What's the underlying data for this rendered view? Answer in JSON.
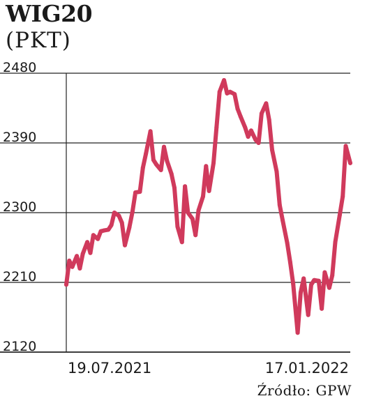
{
  "chart_data": {
    "type": "line",
    "title": "WIG20",
    "subtitle": "(PKT)",
    "xlabel": "",
    "ylabel": "",
    "ylim": [
      2120,
      2480
    ],
    "y_ticks": [
      "2480",
      "2390",
      "2300",
      "2210",
      "2120"
    ],
    "x_tick_labels": [
      "19.07.2021",
      "17.01.2022"
    ],
    "grid": "horizontal",
    "line_color": "#d03a5c",
    "x_range": [
      "2021-07-19",
      "2022-01-24"
    ],
    "series": [
      {
        "points": [
          [
            "2021-07-19",
            2207
          ],
          [
            "2021-07-21",
            2238
          ],
          [
            "2021-07-23",
            2230
          ],
          [
            "2021-07-26",
            2244
          ],
          [
            "2021-07-28",
            2228
          ],
          [
            "2021-07-30",
            2247
          ],
          [
            "2021-08-02",
            2262
          ],
          [
            "2021-08-04",
            2248
          ],
          [
            "2021-08-06",
            2271
          ],
          [
            "2021-08-09",
            2266
          ],
          [
            "2021-08-11",
            2276
          ],
          [
            "2021-08-13",
            2277
          ],
          [
            "2021-08-16",
            2278
          ],
          [
            "2021-08-18",
            2284
          ],
          [
            "2021-08-20",
            2300
          ],
          [
            "2021-08-23",
            2296
          ],
          [
            "2021-08-25",
            2287
          ],
          [
            "2021-08-27",
            2258
          ],
          [
            "2021-08-30",
            2281
          ],
          [
            "2021-09-01",
            2301
          ],
          [
            "2021-09-03",
            2326
          ],
          [
            "2021-09-06",
            2327
          ],
          [
            "2021-09-08",
            2358
          ],
          [
            "2021-09-10",
            2376
          ],
          [
            "2021-09-13",
            2405
          ],
          [
            "2021-09-15",
            2368
          ],
          [
            "2021-09-17",
            2362
          ],
          [
            "2021-09-20",
            2355
          ],
          [
            "2021-09-22",
            2385
          ],
          [
            "2021-09-24",
            2367
          ],
          [
            "2021-09-27",
            2350
          ],
          [
            "2021-09-29",
            2332
          ],
          [
            "2021-10-01",
            2282
          ],
          [
            "2021-10-04",
            2262
          ],
          [
            "2021-10-06",
            2334
          ],
          [
            "2021-10-08",
            2300
          ],
          [
            "2021-10-11",
            2292
          ],
          [
            "2021-10-13",
            2271
          ],
          [
            "2021-10-15",
            2303
          ],
          [
            "2021-10-18",
            2321
          ],
          [
            "2021-10-20",
            2360
          ],
          [
            "2021-10-22",
            2328
          ],
          [
            "2021-10-25",
            2364
          ],
          [
            "2021-10-27",
            2410
          ],
          [
            "2021-10-29",
            2456
          ],
          [
            "2021-11-01",
            2471
          ],
          [
            "2021-11-03",
            2454
          ],
          [
            "2021-11-05",
            2456
          ],
          [
            "2021-11-08",
            2453
          ],
          [
            "2021-11-10",
            2434
          ],
          [
            "2021-11-12",
            2424
          ],
          [
            "2021-11-15",
            2410
          ],
          [
            "2021-11-17",
            2398
          ],
          [
            "2021-11-19",
            2406
          ],
          [
            "2021-11-22",
            2394
          ],
          [
            "2021-11-24",
            2390
          ],
          [
            "2021-11-26",
            2428
          ],
          [
            "2021-11-29",
            2441
          ],
          [
            "2021-12-01",
            2420
          ],
          [
            "2021-12-03",
            2381
          ],
          [
            "2021-12-06",
            2353
          ],
          [
            "2021-12-08",
            2310
          ],
          [
            "2021-12-10",
            2290
          ],
          [
            "2021-12-13",
            2261
          ],
          [
            "2021-12-15",
            2236
          ],
          [
            "2021-12-17",
            2208
          ],
          [
            "2021-12-20",
            2145
          ],
          [
            "2021-12-22",
            2197
          ],
          [
            "2021-12-24",
            2215
          ],
          [
            "2021-12-27",
            2168
          ],
          [
            "2021-12-29",
            2207
          ],
          [
            "2021-12-31",
            2213
          ],
          [
            "2022-01-03",
            2212
          ],
          [
            "2022-01-05",
            2176
          ],
          [
            "2022-01-07",
            2223
          ],
          [
            "2022-01-10",
            2203
          ],
          [
            "2022-01-12",
            2219
          ],
          [
            "2022-01-14",
            2262
          ],
          [
            "2022-01-17",
            2297
          ],
          [
            "2022-01-19",
            2321
          ],
          [
            "2022-01-21",
            2386
          ],
          [
            "2022-01-24",
            2364
          ]
        ]
      }
    ]
  },
  "source": "Źródło: GPW"
}
